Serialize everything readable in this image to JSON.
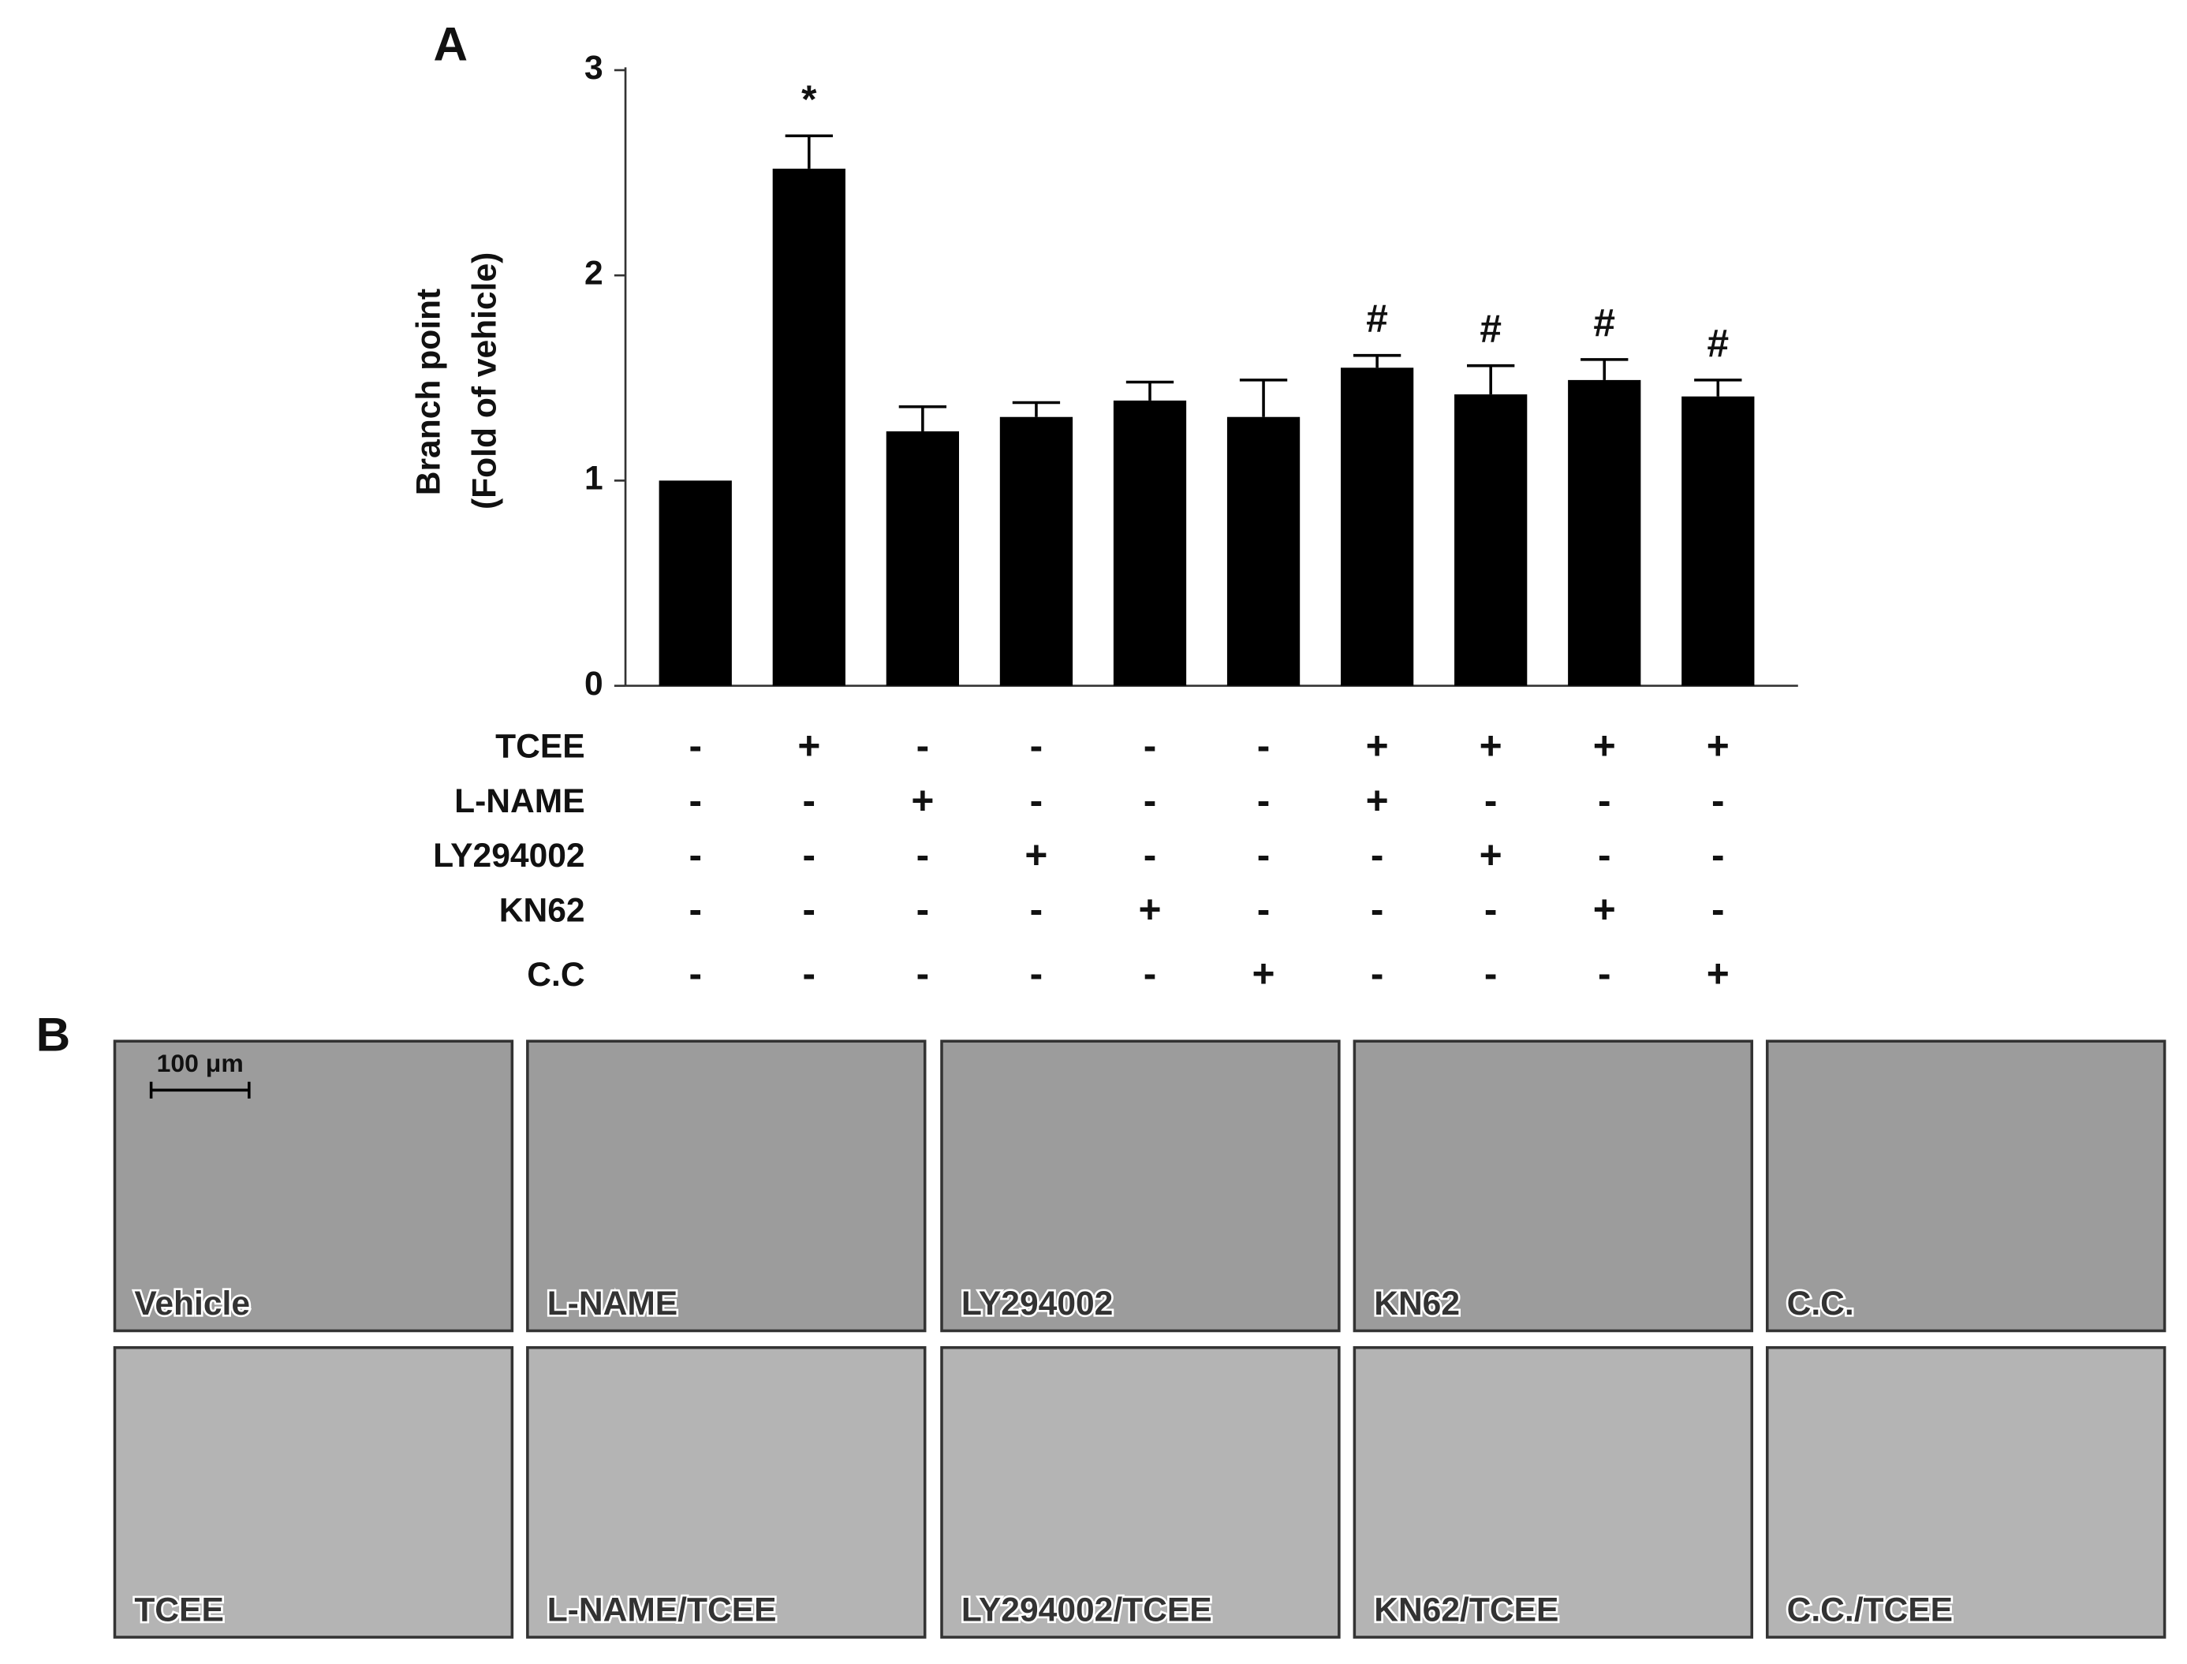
{
  "chart_data": {
    "type": "bar",
    "panel_label": "A",
    "ylabel": [
      "Branch point",
      "(Fold of vehicle)"
    ],
    "values": [
      1.0,
      2.52,
      1.24,
      1.31,
      1.39,
      1.31,
      1.55,
      1.42,
      1.49,
      1.41
    ],
    "errors": [
      0,
      0.16,
      0.12,
      0.07,
      0.09,
      0.18,
      0.06,
      0.14,
      0.1,
      0.08
    ],
    "annotations": [
      null,
      "*",
      null,
      null,
      null,
      null,
      "#",
      "#",
      "#",
      "#"
    ],
    "color": "#000000",
    "ylim": [
      0,
      3
    ],
    "yticks": [
      0,
      1,
      2,
      3
    ],
    "treatments": [
      {
        "name": "TCEE",
        "signs": [
          "-",
          "+",
          "-",
          "-",
          "-",
          "-",
          "+",
          "+",
          "+",
          "+"
        ]
      },
      {
        "name": "L-NAME",
        "signs": [
          "-",
          "-",
          "+",
          "-",
          "-",
          "-",
          "+",
          "-",
          "-",
          "-"
        ]
      },
      {
        "name": "LY294002",
        "signs": [
          "-",
          "-",
          "-",
          "+",
          "-",
          "-",
          "-",
          "+",
          "-",
          "-"
        ]
      },
      {
        "name": "KN62",
        "signs": [
          "-",
          "-",
          "-",
          "-",
          "+",
          "-",
          "-",
          "-",
          "+",
          "-"
        ]
      },
      {
        "name": "C.C",
        "signs": [
          "-",
          "-",
          "-",
          "-",
          "-",
          "+",
          "-",
          "-",
          "-",
          "+"
        ]
      }
    ]
  },
  "micrographs": {
    "panel_label": "B",
    "scale_bar": "100 μm",
    "labels": [
      "Vehicle",
      "L-NAME",
      "LY294002",
      "KN62",
      "C.C.",
      "TCEE",
      "L-NAME/TCEE",
      "LY294002/TCEE",
      "KN62/TCEE",
      "C.C./TCEE"
    ]
  }
}
